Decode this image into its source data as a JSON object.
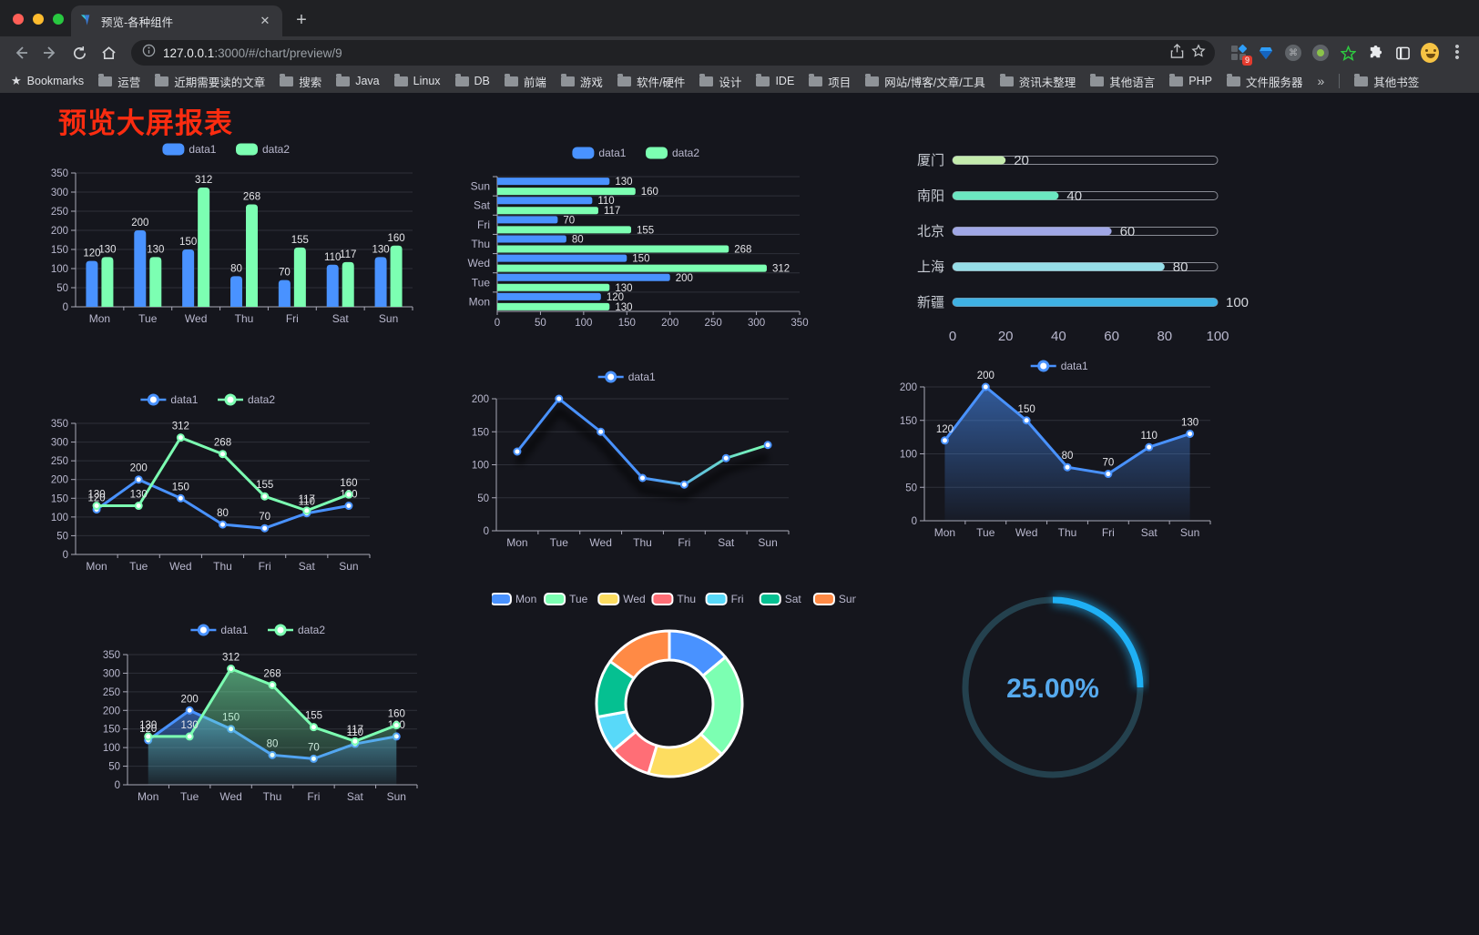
{
  "browser": {
    "tab_title": "预览-各种组件",
    "url_host": "127.0.0.1",
    "url_path": ":3000/#/chart/preview/9",
    "bookmarks_label": "Bookmarks",
    "folders": [
      "运营",
      "近期需要读的文章",
      "搜索",
      "Java",
      "Linux",
      "DB",
      "前端",
      "游戏",
      "软件/硬件",
      "设计",
      "IDE",
      "项目",
      "网站/博客/文章/工具",
      "资讯未整理",
      "其他语言",
      "PHP",
      "文件服务器"
    ],
    "overflow": "»",
    "other_bookmarks": "其他书签",
    "ext_badge": "9",
    "new_tab_label": "+"
  },
  "page": {
    "title": "预览大屏报表",
    "title_color": "#fb2c10"
  },
  "chart_data": [
    {
      "type": "bar",
      "categories": [
        "Mon",
        "Tue",
        "Wed",
        "Thu",
        "Fri",
        "Sat",
        "Sun"
      ],
      "series": [
        {
          "name": "data1",
          "color": "#4992ff",
          "values": [
            120,
            200,
            150,
            80,
            70,
            110,
            130
          ]
        },
        {
          "name": "data2",
          "color": "#7cffb2",
          "values": [
            130,
            130,
            312,
            268,
            155,
            117,
            160
          ]
        }
      ],
      "ylim": [
        0,
        350
      ],
      "ystep": 50,
      "value_labels": true,
      "legend_position": "top"
    },
    {
      "type": "hbar",
      "categories": [
        "Sun",
        "Sat",
        "Fri",
        "Thu",
        "Wed",
        "Tue",
        "Mon"
      ],
      "series": [
        {
          "name": "data1",
          "color": "#4992ff",
          "values": [
            130,
            110,
            70,
            80,
            150,
            200,
            120
          ]
        },
        {
          "name": "data2",
          "color": "#7cffb2",
          "values": [
            160,
            117,
            155,
            268,
            312,
            130,
            130
          ]
        }
      ],
      "xlim": [
        0,
        350
      ],
      "xstep": 50,
      "value_labels": true,
      "legend_position": "top"
    },
    {
      "type": "progress",
      "items": [
        {
          "label": "厦门",
          "value": 20,
          "color": "#c4ebad"
        },
        {
          "label": "南阳",
          "value": 40,
          "color": "#6be6c1"
        },
        {
          "label": "北京",
          "value": 60,
          "color": "#a0a7e6"
        },
        {
          "label": "上海",
          "value": 80,
          "color": "#96dee8"
        },
        {
          "label": "新疆",
          "value": 100,
          "color": "#3fb1e3"
        }
      ],
      "axis_ticks": [
        0,
        20,
        40,
        60,
        80,
        100
      ],
      "xlim": [
        0,
        100
      ]
    },
    {
      "type": "line",
      "categories": [
        "Mon",
        "Tue",
        "Wed",
        "Thu",
        "Fri",
        "Sat",
        "Sun"
      ],
      "series": [
        {
          "name": "data1",
          "color": "#4992ff",
          "values": [
            120,
            200,
            150,
            80,
            70,
            110,
            130
          ]
        },
        {
          "name": "data2",
          "color": "#7cffb2",
          "values": [
            130,
            130,
            312,
            268,
            155,
            117,
            160
          ]
        }
      ],
      "ylim": [
        0,
        350
      ],
      "ystep": 50,
      "value_labels": true,
      "legend_position": "top"
    },
    {
      "type": "line",
      "categories": [
        "Mon",
        "Tue",
        "Wed",
        "Thu",
        "Fri",
        "Sat",
        "Sun"
      ],
      "series": [
        {
          "name": "data1",
          "color": "#4992ff",
          "values": [
            120,
            200,
            150,
            80,
            70,
            110,
            130
          ]
        }
      ],
      "stroke_gradient": [
        "#4992ff",
        "#7cffb2"
      ],
      "shadow": true,
      "ylim": [
        0,
        200
      ],
      "ystep": 50,
      "value_labels": false,
      "legend_position": "top"
    },
    {
      "type": "line",
      "categories": [
        "Mon",
        "Tue",
        "Wed",
        "Thu",
        "Fri",
        "Sat",
        "Sun"
      ],
      "series": [
        {
          "name": "data1",
          "color": "#4992ff",
          "values": [
            120,
            200,
            150,
            80,
            70,
            110,
            130
          ],
          "area": true
        }
      ],
      "ylim": [
        0,
        200
      ],
      "ystep": 50,
      "value_labels": true,
      "legend_position": "top"
    },
    {
      "type": "line",
      "categories": [
        "Mon",
        "Tue",
        "Wed",
        "Thu",
        "Fri",
        "Sat",
        "Sun"
      ],
      "series": [
        {
          "name": "data1",
          "color": "#4992ff",
          "values": [
            120,
            200,
            150,
            80,
            70,
            110,
            130
          ],
          "area": true
        },
        {
          "name": "data2",
          "color": "#7cffb2",
          "values": [
            130,
            130,
            312,
            268,
            155,
            117,
            160
          ],
          "area": true
        }
      ],
      "ylim": [
        0,
        350
      ],
      "ystep": 50,
      "value_labels": true,
      "legend_position": "top"
    },
    {
      "type": "pie",
      "items": [
        {
          "label": "Mon",
          "value": 120,
          "color": "#4992ff"
        },
        {
          "label": "Tue",
          "value": 200,
          "color": "#7cffb2"
        },
        {
          "label": "Wed",
          "value": 150,
          "color": "#fddd60"
        },
        {
          "label": "Thu",
          "value": 80,
          "color": "#ff6e76"
        },
        {
          "label": "Fri",
          "value": 70,
          "color": "#58d9f9"
        },
        {
          "label": "Sat",
          "value": 110,
          "color": "#05c091"
        },
        {
          "label": "Sun",
          "value": 130,
          "color": "#ff8a45"
        }
      ],
      "donut": true,
      "border_color": "#ffffff",
      "legend_position": "top"
    },
    {
      "type": "gauge",
      "value_label": "25.00%",
      "percent": 25,
      "color": "#1fb0f5",
      "track_color": "#24414e",
      "text_color": "#56aaee"
    }
  ]
}
